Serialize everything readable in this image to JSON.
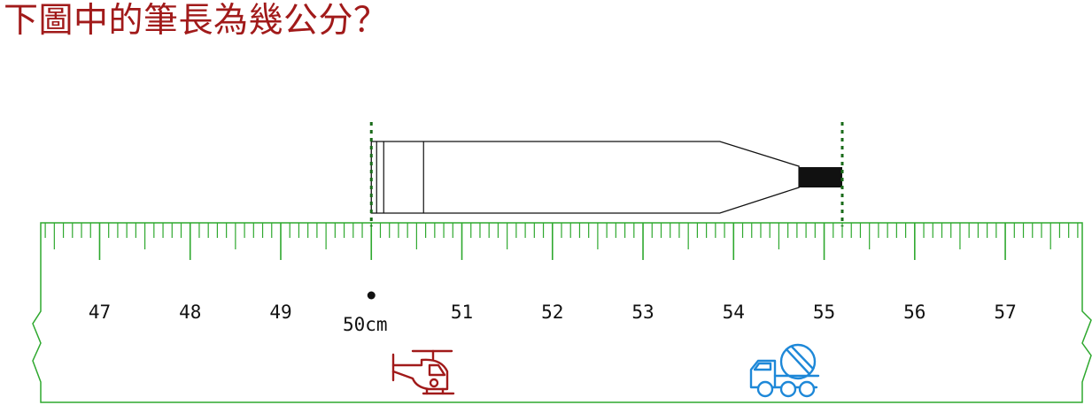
{
  "question": "下圖中的筆長為幾公分？",
  "ruler": {
    "min": 46.35,
    "max": 57.85,
    "labeled_marks": [
      47,
      48,
      49,
      51,
      52,
      53,
      54,
      55,
      56,
      57
    ],
    "origin_mark": 50,
    "origin_label": "50cm",
    "color": "#2ea82e"
  },
  "pencil": {
    "start": 50,
    "end": 55.2,
    "outline_color": "#111111"
  },
  "guides": {
    "color": "#1a6b1a"
  },
  "icons": {
    "helicopter": {
      "name": "helicopter-icon",
      "color": "#a11a1a"
    },
    "truck": {
      "name": "cement-truck-icon",
      "color": "#1e88d8"
    }
  }
}
